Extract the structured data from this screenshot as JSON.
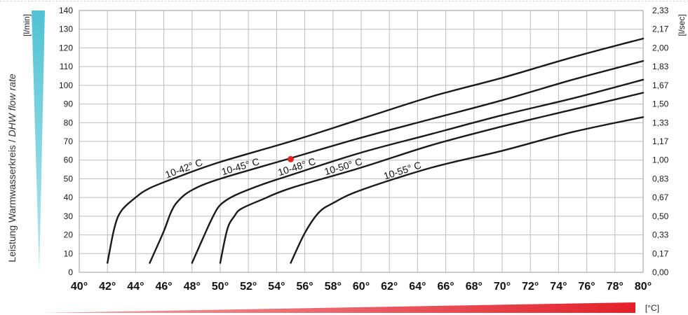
{
  "chart_data": {
    "type": "line",
    "ylabel": "Leistung Warmwasserkreis / DHW flow rate",
    "ylabel_plain": "Leistung Warmwasserkreis / ",
    "ylabel_italic": "DHW flow rate",
    "y_unit_left": "[l/min]",
    "y_unit_right": "[l/sec]",
    "x_unit": "[°C]",
    "xlim": [
      40,
      80
    ],
    "ylim": [
      0,
      140
    ],
    "grid": true,
    "x_ticks": [
      "40°",
      "42°",
      "44°",
      "46°",
      "48°",
      "50°",
      "52°",
      "54°",
      "56°",
      "58°",
      "60°",
      "62°",
      "64°",
      "66°",
      "68°",
      "70°",
      "72°",
      "74°",
      "76°",
      "78°",
      "80°"
    ],
    "y_ticks_left": [
      "0",
      "10",
      "20",
      "30",
      "40",
      "50",
      "60",
      "70",
      "80",
      "90",
      "100",
      "110",
      "120",
      "130",
      "140"
    ],
    "y_ticks_right": [
      "0,00",
      "0,17",
      "0,33",
      "0,50",
      "0,67",
      "0,83",
      "1,00",
      "1,17",
      "1,33",
      "1,50",
      "1,67",
      "1,83",
      "2,00",
      "2,17",
      "2,33"
    ],
    "series": [
      {
        "name": "10-42° C",
        "x": [
          42,
          42.5,
          43,
          44,
          45,
          47,
          50,
          55,
          60,
          65,
          70,
          75,
          80
        ],
        "y": [
          5,
          24,
          33,
          40,
          45,
          51,
          59,
          70,
          82,
          94,
          104,
          115,
          125
        ]
      },
      {
        "name": "10-45° C",
        "x": [
          45,
          46,
          46.5,
          47,
          48,
          50,
          55,
          60,
          65,
          70,
          75,
          80
        ],
        "y": [
          5,
          22,
          32,
          38,
          44,
          50,
          61,
          72,
          82,
          92,
          103,
          113
        ]
      },
      {
        "name": "10-48° C",
        "x": [
          48,
          49,
          49.5,
          50,
          51,
          53,
          55,
          60,
          65,
          70,
          75,
          80
        ],
        "y": [
          5,
          22,
          30,
          36,
          41,
          47,
          52,
          64,
          74,
          84,
          93,
          103
        ]
      },
      {
        "name": "10-50° C",
        "x": [
          50,
          50.5,
          51,
          51.5,
          53,
          55,
          60,
          65,
          70,
          75,
          80
        ],
        "y": [
          5,
          23,
          30,
          34,
          39,
          45,
          56,
          68,
          78,
          87,
          96
        ]
      },
      {
        "name": "10-55° C",
        "x": [
          55,
          56,
          57,
          58,
          60,
          65,
          70,
          75,
          80
        ],
        "y": [
          5,
          21,
          32,
          37,
          44,
          56,
          65,
          75,
          83
        ]
      }
    ],
    "highlight_point": {
      "x": 55,
      "y": 60.5,
      "color": "#e02424"
    },
    "colors": {
      "line": "#1a1a1a",
      "grid": "#bdbdbd",
      "left_wedge": "#4fc3d4",
      "bottom_wedge": "#e3202a"
    }
  }
}
